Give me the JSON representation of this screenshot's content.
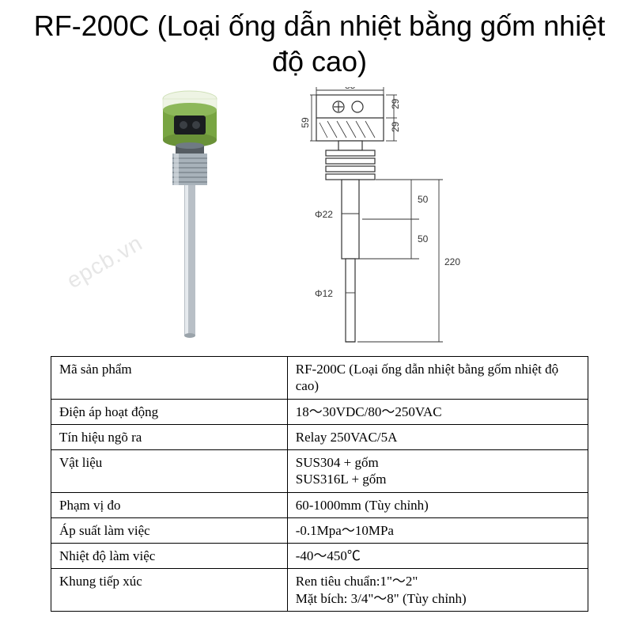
{
  "title": "RF-200C (Loại ống dẫn nhiệt bằng gốm nhiệt độ cao)",
  "watermark": "epcb.vn",
  "diagram": {
    "dims": {
      "top_width": "85",
      "top_h1": "29",
      "top_h2": "29",
      "neck_h": "59",
      "fin_gap1": "50",
      "fin_gap2": "50",
      "total_probe": "220",
      "dia_upper": "Φ22",
      "dia_lower": "Φ12"
    },
    "colors": {
      "line": "#333333",
      "fill_light": "#f5f5f5"
    }
  },
  "photo": {
    "colors": {
      "cap": "#78a542",
      "cap_highlight": "#e8f0d8",
      "body_dark": "#2a2f35",
      "hex": "#6f7a83",
      "probe": "#b8bfc6",
      "probe_hi": "#e6eaee"
    }
  },
  "table": {
    "rows": [
      {
        "label": "Mã sản phẩm",
        "value": "RF-200C (Loại ống dẫn nhiệt bằng gốm nhiệt độ cao)"
      },
      {
        "label": "Điện áp hoạt động",
        "value": "18～30VDC/80～250VAC"
      },
      {
        "label": "Tín hiệu ngõ ra",
        "value": "Relay 250VAC/5A"
      },
      {
        "label": "Vật liệu",
        "value": "SUS304 + gốm\nSUS316L + gốm"
      },
      {
        "label": "Phạm vị đo",
        "value": "60-1000mm (Tùy chỉnh)"
      },
      {
        "label": "Áp suất làm việc",
        "value": "-0.1Mpa～10MPa"
      },
      {
        "label": "Nhiệt độ làm việc",
        "value": "-40～450℃"
      },
      {
        "label": "Khung tiếp xúc",
        "value": "Ren tiêu chuẩn:1\"～2\"\nMặt bích: 3/4\"～8\" (Tùy chỉnh)"
      }
    ]
  }
}
